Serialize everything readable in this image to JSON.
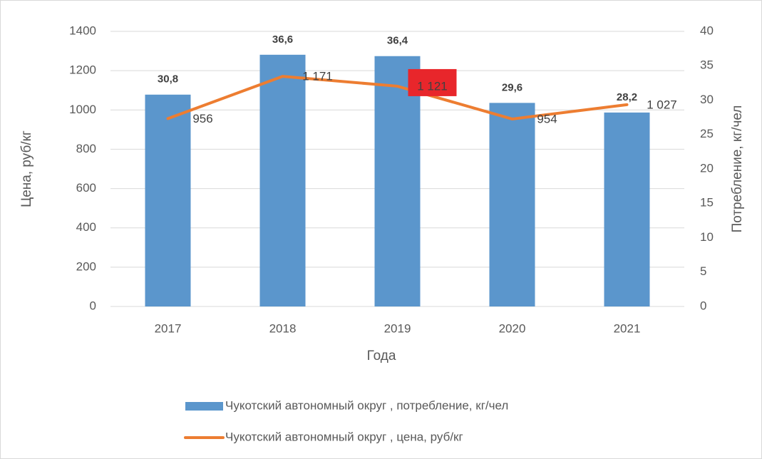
{
  "chart_data": {
    "type": "bar-line",
    "x_label": "Года",
    "y_label": "Цена, руб/кг",
    "y2_label": "Потребление, кг/чел",
    "categories": [
      "2017",
      "2018",
      "2019",
      "2020",
      "2021"
    ],
    "series": [
      {
        "name": "Чукотский автономный округ , потребление, кг/чел",
        "type": "bar",
        "axis": "y2",
        "color": "#5b96cc",
        "values": [
          30.8,
          36.6,
          36.4,
          29.6,
          28.2
        ],
        "value_labels": [
          "30,8",
          "36,6",
          "36,4",
          "29,6",
          "28,2"
        ]
      },
      {
        "name": "Чукотский автономный округ , цена, руб/кг",
        "type": "line",
        "axis": "y",
        "color": "#ed7d31",
        "values": [
          956,
          1171,
          1121,
          954,
          1027
        ],
        "value_labels": [
          "956",
          "1 171",
          "1 121",
          "954",
          "1 027"
        ]
      }
    ],
    "ylim": [
      0,
      1400
    ],
    "yticks": [
      0,
      200,
      400,
      600,
      800,
      1000,
      1200,
      1400
    ],
    "y2lim": [
      0,
      40
    ],
    "y2ticks": [
      0,
      5,
      10,
      15,
      20,
      25,
      30,
      35,
      40
    ],
    "grid": true,
    "legend": "bottom"
  }
}
